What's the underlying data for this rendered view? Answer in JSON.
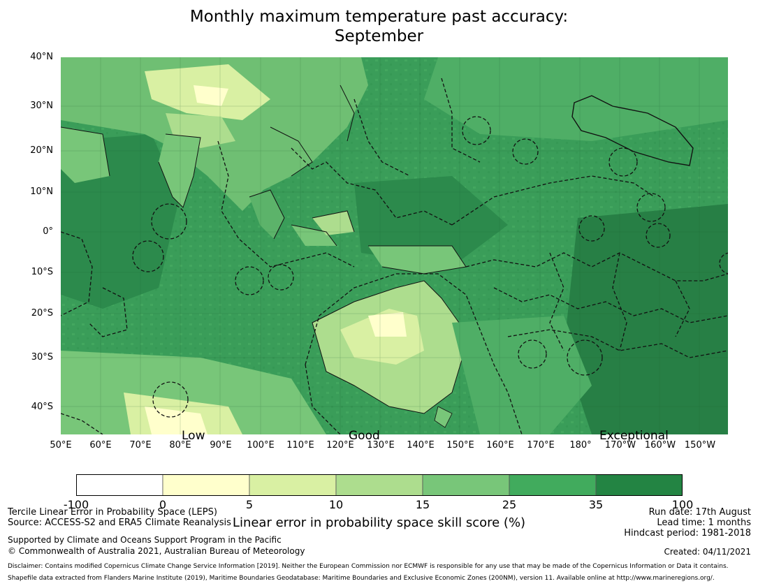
{
  "title": {
    "line1": "Monthly maximum temperature past accuracy:",
    "line2": "September"
  },
  "map": {
    "lat_labels": [
      "40°N",
      "30°N",
      "20°N",
      "10°N",
      "0°",
      "10°S",
      "20°S",
      "30°S",
      "40°S"
    ],
    "lon_labels": [
      "50°E",
      "60°E",
      "70°E",
      "80°E",
      "90°E",
      "100°E",
      "110°E",
      "120°E",
      "130°E",
      "140°E",
      "150°E",
      "160°E",
      "170°E",
      "180°",
      "170°W",
      "160°W",
      "150°W"
    ],
    "zone_labels": {
      "low": "Low",
      "good": "Good",
      "exceptional": "Exceptional"
    },
    "colors": {
      "ocean_dark": "#2b8a4f",
      "ocean_mid": "#3fa55e",
      "light_green": "#a7d98f",
      "pale": "#d9f0a3",
      "cream": "#ffffcc",
      "boundary": "#111111"
    }
  },
  "colorbar": {
    "ticks": [
      "-100",
      "0",
      "5",
      "10",
      "15",
      "25",
      "35",
      "100"
    ],
    "colors": [
      "#ffffff",
      "#ffffcc",
      "#d9f0a3",
      "#addd8e",
      "#78c679",
      "#41ab5d",
      "#238443"
    ],
    "label": "Linear error in probability space skill score (%)"
  },
  "footer": {
    "left1": "Tercile Linear Error in Probability Space (LEPS)",
    "left2": "Source: ACCESS-S2 and ERA5 Climate Reanalysis",
    "left3": "Supported by Climate and Oceans Support Program in the Pacific",
    "left4": "© Commonwealth of Australia 2021, Australian Bureau of Meteorology",
    "right1": "Run date: 17th August",
    "right2": "Lead time: 1 months",
    "right3": "Hindcast period: 1981-2018",
    "right4": "Created: 04/11/2021",
    "disclaimer1": "Disclaimer: Contains modified Copernicus Climate Change Service Information [2019]. Neither the European Commission nor ECMWF is responsible for any use that may be made of the Copernicus Information or Data it contains.",
    "disclaimer2": "Shapefile data extracted from Flanders Marine Institute (2019), Maritime Boundaries Geodatabase: Maritime Boundaries and Exclusive Economic Zones (200NM), version 11. Available online at http://www.marineregions.org/."
  }
}
